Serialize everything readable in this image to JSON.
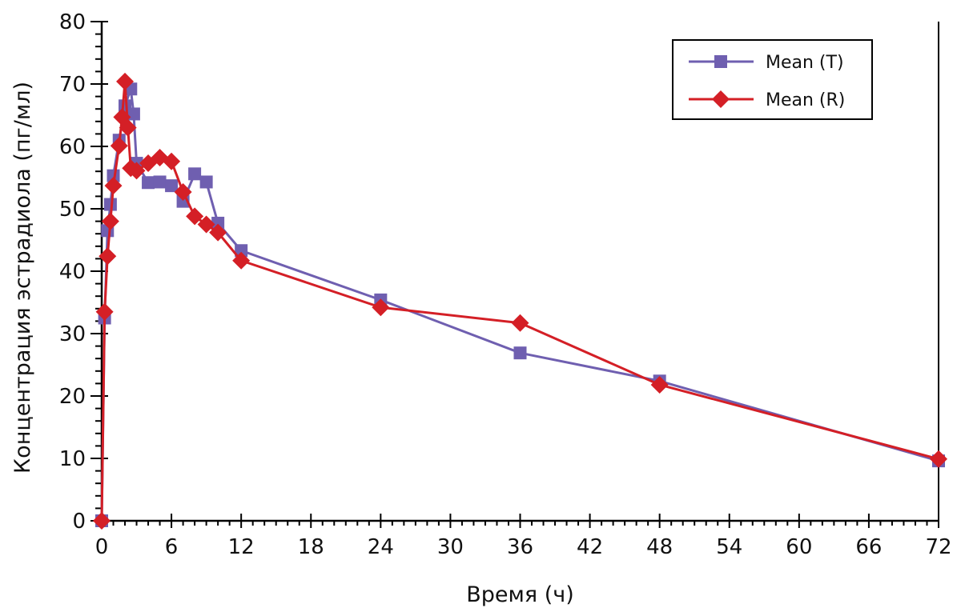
{
  "chart_data": {
    "type": "line",
    "title": "",
    "xlabel": "Время (ч)",
    "ylabel": "Концентрация эстрадиола (пг/мл)",
    "xlim": [
      0,
      72
    ],
    "ylim": [
      0,
      80
    ],
    "x_ticks": [
      0,
      6,
      12,
      18,
      24,
      30,
      36,
      42,
      48,
      54,
      60,
      66,
      72
    ],
    "y_ticks": [
      0,
      10,
      20,
      30,
      40,
      50,
      60,
      70,
      80
    ],
    "x_minor_step": 1,
    "y_minor_step": 2,
    "grid": false,
    "legend_position": "top-right",
    "series": [
      {
        "name": "Mean (T)",
        "color": "#6f5fb0",
        "marker": "square",
        "x": [
          0,
          0.25,
          0.5,
          0.75,
          1,
          1.5,
          2,
          2.5,
          2.75,
          3,
          4,
          5,
          6,
          7,
          8,
          9,
          10,
          12,
          24,
          36,
          48,
          72
        ],
        "y": [
          0,
          32.5,
          46.5,
          50.7,
          55.3,
          61.0,
          66.5,
          69.2,
          65.2,
          57.3,
          54.2,
          54.3,
          53.7,
          51.2,
          55.6,
          54.3,
          47.7,
          43.3,
          35.4,
          26.9,
          22.4,
          9.6
        ]
      },
      {
        "name": "Mean (R)",
        "color": "#d41f26",
        "marker": "diamond",
        "x": [
          0,
          0.25,
          0.5,
          0.75,
          1,
          1.5,
          1.75,
          2,
          2.25,
          2.5,
          3,
          4,
          5,
          6,
          7,
          8,
          9,
          10,
          12,
          24,
          36,
          48,
          72
        ],
        "y": [
          0,
          33.5,
          42.4,
          48.0,
          53.7,
          60.1,
          64.7,
          70.4,
          63.0,
          56.5,
          56.1,
          57.3,
          58.2,
          57.6,
          52.7,
          48.8,
          47.5,
          46.2,
          41.7,
          34.2,
          31.7,
          21.8,
          9.9
        ]
      }
    ]
  }
}
